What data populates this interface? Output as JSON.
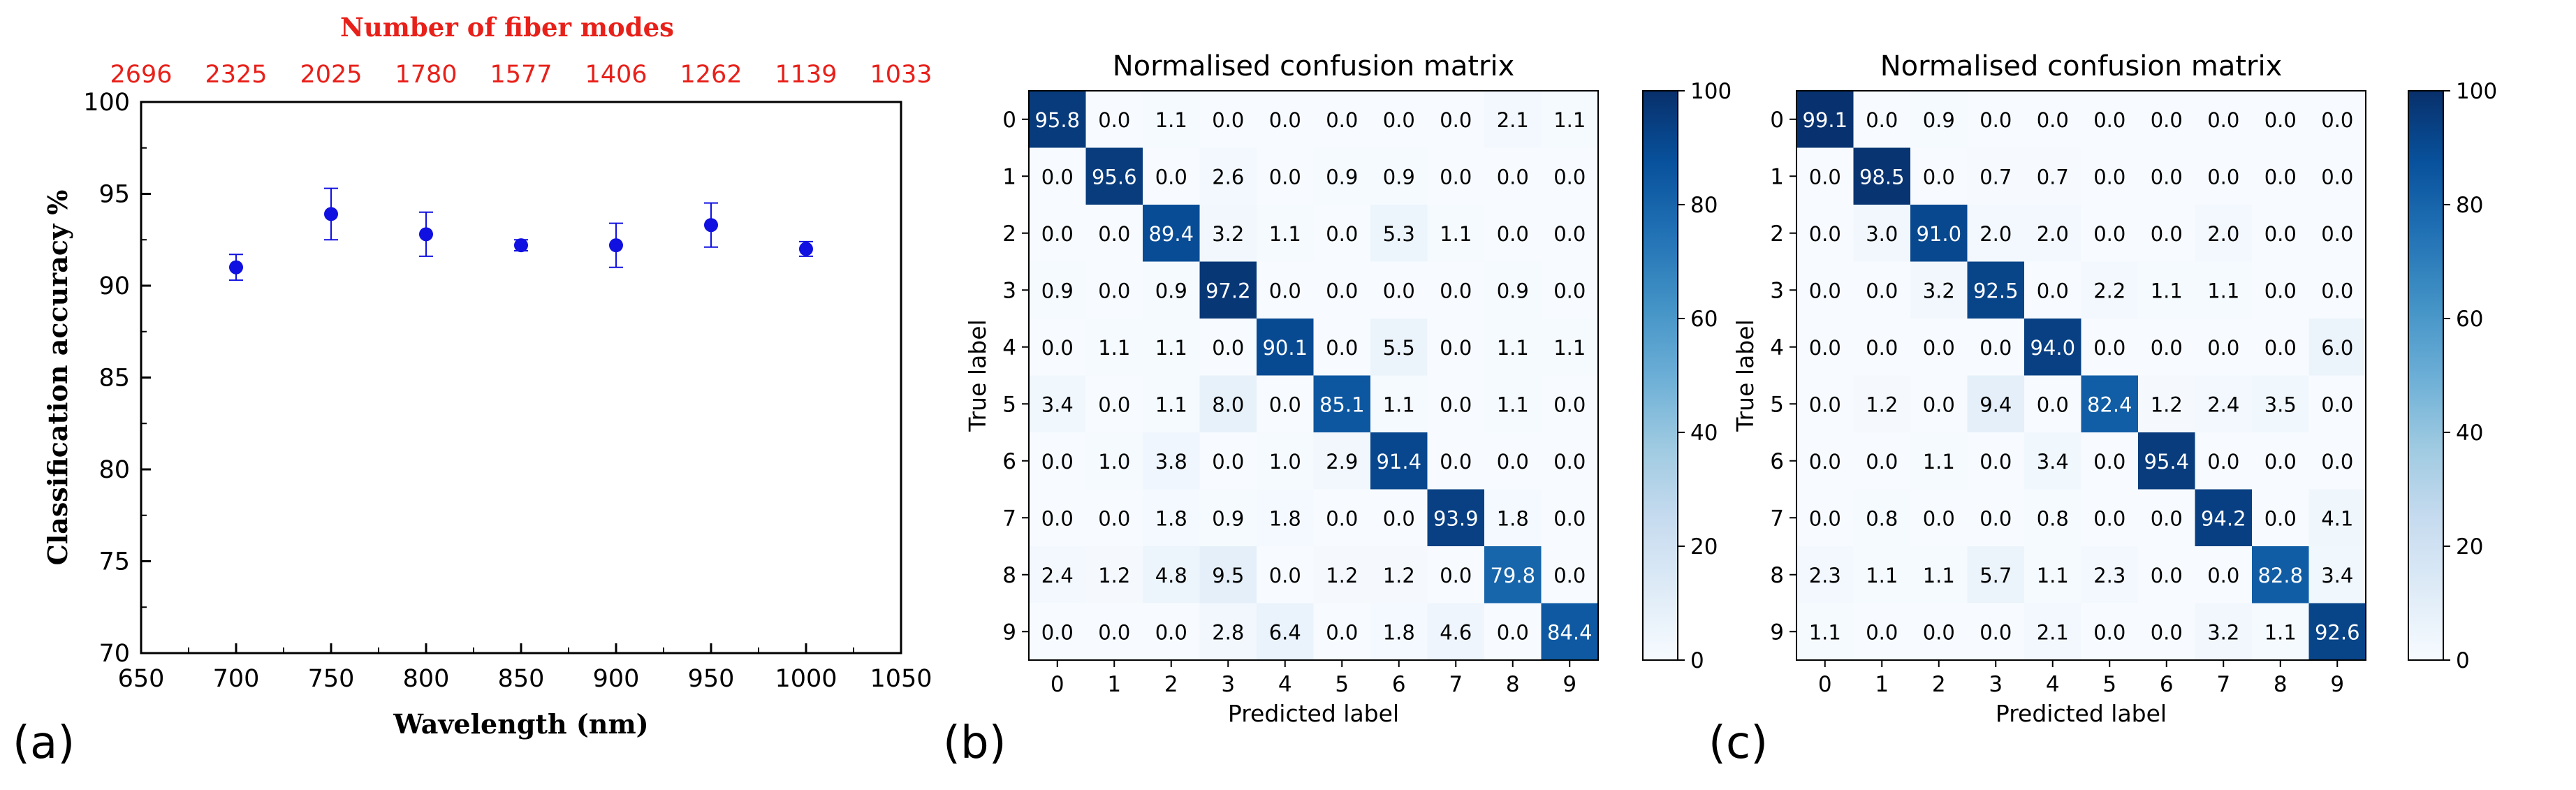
{
  "panel_labels": [
    "(a)",
    "(b)",
    "(c)"
  ],
  "colorbar_ticks": [
    "0",
    "20",
    "40",
    "60",
    "80",
    "100"
  ],
  "chart_data": [
    {
      "type": "scatter",
      "title": "",
      "xlabel": "Wavelength (nm)",
      "ylabel": "Classification accuracy %",
      "top_axis_label": "Number of fiber modes",
      "top_axis_ticks": [
        "2696",
        "2325",
        "2025",
        "1780",
        "1577",
        "1406",
        "1262",
        "1139",
        "1033"
      ],
      "xlim": [
        650,
        1050
      ],
      "ylim": [
        70,
        100
      ],
      "xticks": [
        650,
        700,
        750,
        800,
        850,
        900,
        950,
        1000,
        1050
      ],
      "yticks": [
        70,
        75,
        80,
        85,
        90,
        95,
        100
      ],
      "x": [
        700,
        750,
        800,
        850,
        900,
        950,
        1000
      ],
      "y": [
        91.0,
        93.9,
        92.8,
        92.2,
        92.2,
        93.3,
        92.0
      ],
      "yerr": [
        0.7,
        1.4,
        1.2,
        0.3,
        1.2,
        1.2,
        0.4
      ],
      "colors": {
        "points": "#1010e0",
        "top_axis": "#e8201a"
      }
    },
    {
      "type": "heatmap",
      "title": "Normalised confusion matrix",
      "xlabel": "Predicted label",
      "ylabel": "True label",
      "categories": [
        "0",
        "1",
        "2",
        "3",
        "4",
        "5",
        "6",
        "7",
        "8",
        "9"
      ],
      "vmin": 0,
      "vmax": 100,
      "matrix": [
        [
          95.8,
          0.0,
          1.1,
          0.0,
          0.0,
          0.0,
          0.0,
          0.0,
          2.1,
          1.1
        ],
        [
          0.0,
          95.6,
          0.0,
          2.6,
          0.0,
          0.9,
          0.9,
          0.0,
          0.0,
          0.0
        ],
        [
          0.0,
          0.0,
          89.4,
          3.2,
          1.1,
          0.0,
          5.3,
          1.1,
          0.0,
          0.0
        ],
        [
          0.9,
          0.0,
          0.9,
          97.2,
          0.0,
          0.0,
          0.0,
          0.0,
          0.9,
          0.0
        ],
        [
          0.0,
          1.1,
          1.1,
          0.0,
          90.1,
          0.0,
          5.5,
          0.0,
          1.1,
          1.1
        ],
        [
          3.4,
          0.0,
          1.1,
          8.0,
          0.0,
          85.1,
          1.1,
          0.0,
          1.1,
          0.0
        ],
        [
          0.0,
          1.0,
          3.8,
          0.0,
          1.0,
          2.9,
          91.4,
          0.0,
          0.0,
          0.0
        ],
        [
          0.0,
          0.0,
          1.8,
          0.9,
          1.8,
          0.0,
          0.0,
          93.9,
          1.8,
          0.0
        ],
        [
          2.4,
          1.2,
          4.8,
          9.5,
          0.0,
          1.2,
          1.2,
          0.0,
          79.8,
          0.0
        ],
        [
          0.0,
          0.0,
          0.0,
          2.8,
          6.4,
          0.0,
          1.8,
          4.6,
          0.0,
          84.4
        ]
      ]
    },
    {
      "type": "heatmap",
      "title": "Normalised confusion matrix",
      "xlabel": "Predicted label",
      "ylabel": "True label",
      "categories": [
        "0",
        "1",
        "2",
        "3",
        "4",
        "5",
        "6",
        "7",
        "8",
        "9"
      ],
      "vmin": 0,
      "vmax": 100,
      "matrix": [
        [
          99.1,
          0.0,
          0.9,
          0.0,
          0.0,
          0.0,
          0.0,
          0.0,
          0.0,
          0.0
        ],
        [
          0.0,
          98.5,
          0.0,
          0.7,
          0.7,
          0.0,
          0.0,
          0.0,
          0.0,
          0.0
        ],
        [
          0.0,
          3.0,
          91.0,
          2.0,
          2.0,
          0.0,
          0.0,
          2.0,
          0.0,
          0.0
        ],
        [
          0.0,
          0.0,
          3.2,
          92.5,
          0.0,
          2.2,
          1.1,
          1.1,
          0.0,
          0.0
        ],
        [
          0.0,
          0.0,
          0.0,
          0.0,
          94.0,
          0.0,
          0.0,
          0.0,
          0.0,
          6.0
        ],
        [
          0.0,
          1.2,
          0.0,
          9.4,
          0.0,
          82.4,
          1.2,
          2.4,
          3.5,
          0.0
        ],
        [
          0.0,
          0.0,
          1.1,
          0.0,
          3.4,
          0.0,
          95.4,
          0.0,
          0.0,
          0.0
        ],
        [
          0.0,
          0.8,
          0.0,
          0.0,
          0.8,
          0.0,
          0.0,
          94.2,
          0.0,
          4.1
        ],
        [
          2.3,
          1.1,
          1.1,
          5.7,
          1.1,
          2.3,
          0.0,
          0.0,
          82.8,
          3.4
        ],
        [
          1.1,
          0.0,
          0.0,
          0.0,
          2.1,
          0.0,
          0.0,
          3.2,
          1.1,
          92.6
        ]
      ]
    }
  ]
}
